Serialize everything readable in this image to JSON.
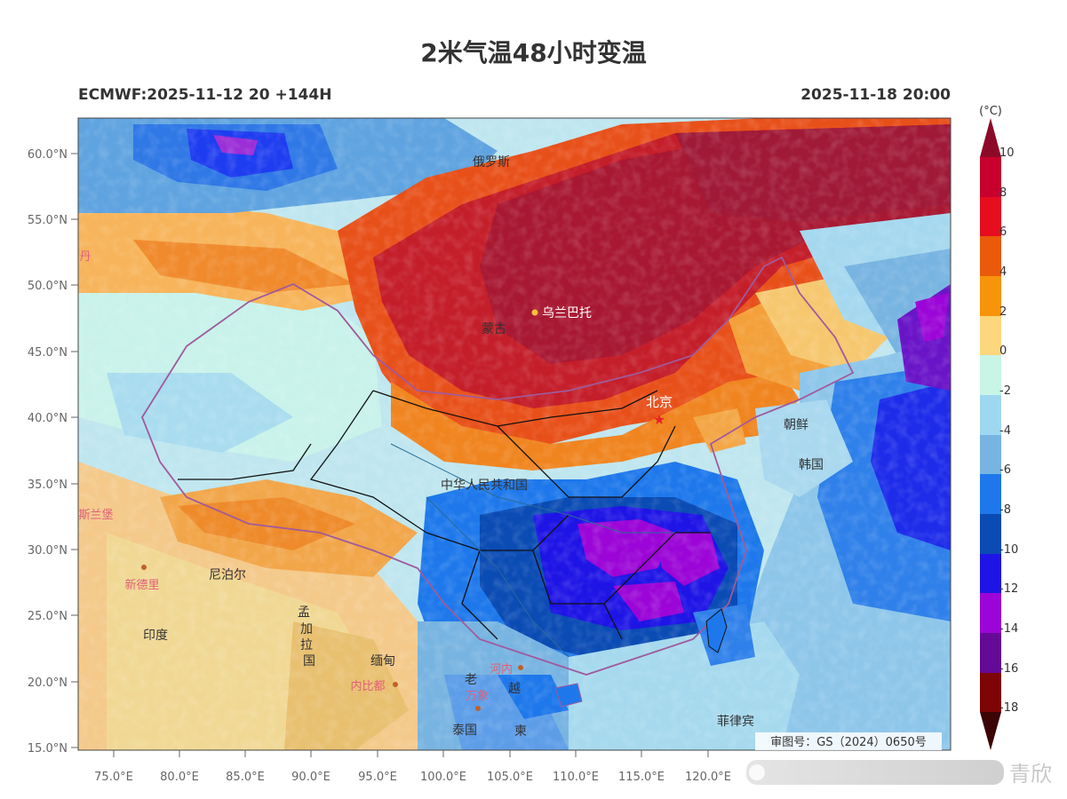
{
  "title": "2米气温48小时变温",
  "subtitle_left": "ECMWF:2025-11-12 20 +144H",
  "subtitle_right": "2025-11-18 20:00",
  "map": {
    "lat_labels": [
      "60.0°N",
      "55.0°N",
      "50.0°N",
      "45.0°N",
      "40.0°N",
      "35.0°N",
      "30.0°N",
      "25.0°N",
      "20.0°N",
      "15.0°N"
    ],
    "lon_labels": [
      "75.0°E",
      "80.0°E",
      "85.0°E",
      "90.0°E",
      "95.0°E",
      "100.0°E",
      "105.0°E",
      "110.0°E",
      "115.0°E",
      "120.0°E"
    ],
    "approval": "审图号：GS（2024）0650号",
    "place_labels": [
      {
        "text": "俄罗斯",
        "color": "#333333"
      },
      {
        "text": "蒙古",
        "color": "#333333"
      },
      {
        "text": "乌兰巴托",
        "color": "#ffffff"
      },
      {
        "text": "北京",
        "color": "#ffffff"
      },
      {
        "text": "朝鲜",
        "color": "#333333"
      },
      {
        "text": "韩国",
        "color": "#333333"
      },
      {
        "text": "中华人民共和国",
        "color": "#333333"
      },
      {
        "text": "尼泊尔",
        "color": "#333333"
      },
      {
        "text": "新德里",
        "color": "#e0607a"
      },
      {
        "text": "印度",
        "color": "#333333"
      },
      {
        "text": "孟",
        "color": "#333333"
      },
      {
        "text": "加",
        "color": "#333333"
      },
      {
        "text": "拉",
        "color": "#333333"
      },
      {
        "text": "国",
        "color": "#333333"
      },
      {
        "text": "缅甸",
        "color": "#333333"
      },
      {
        "text": "内比都",
        "color": "#e0607a"
      },
      {
        "text": "河内",
        "color": "#e0607a"
      },
      {
        "text": "老",
        "color": "#333333"
      },
      {
        "text": "万象",
        "color": "#e0607a"
      },
      {
        "text": "越",
        "color": "#333333"
      },
      {
        "text": "泰国",
        "color": "#333333"
      },
      {
        "text": "柬",
        "color": "#333333"
      },
      {
        "text": "菲律宾",
        "color": "#333333"
      },
      {
        "text": "丹",
        "color": "#e0607a"
      },
      {
        "text": "斯兰堡",
        "color": "#e0607a"
      }
    ]
  },
  "colorbar": {
    "unit": "(°C)",
    "tick_labels": [
      "10",
      "8",
      "6",
      "4",
      "2",
      "0",
      "-2",
      "-4",
      "-6",
      "-8",
      "-10",
      "-12",
      "-14",
      "-16",
      "-18"
    ],
    "colors": [
      "#c8002d",
      "#e60d1e",
      "#ea5a0a",
      "#f7940a",
      "#fcd77d",
      "#c8f5e6",
      "#a0d7f0",
      "#78b4e1",
      "#1e78eb",
      "#0a4bb4",
      "#1e14e6",
      "#9b05d7",
      "#640a96",
      "#7d0505"
    ],
    "top_arrow_color": "#8c0a28",
    "bottom_arrow_color": "#3c0505"
  },
  "watermark": "青欣"
}
